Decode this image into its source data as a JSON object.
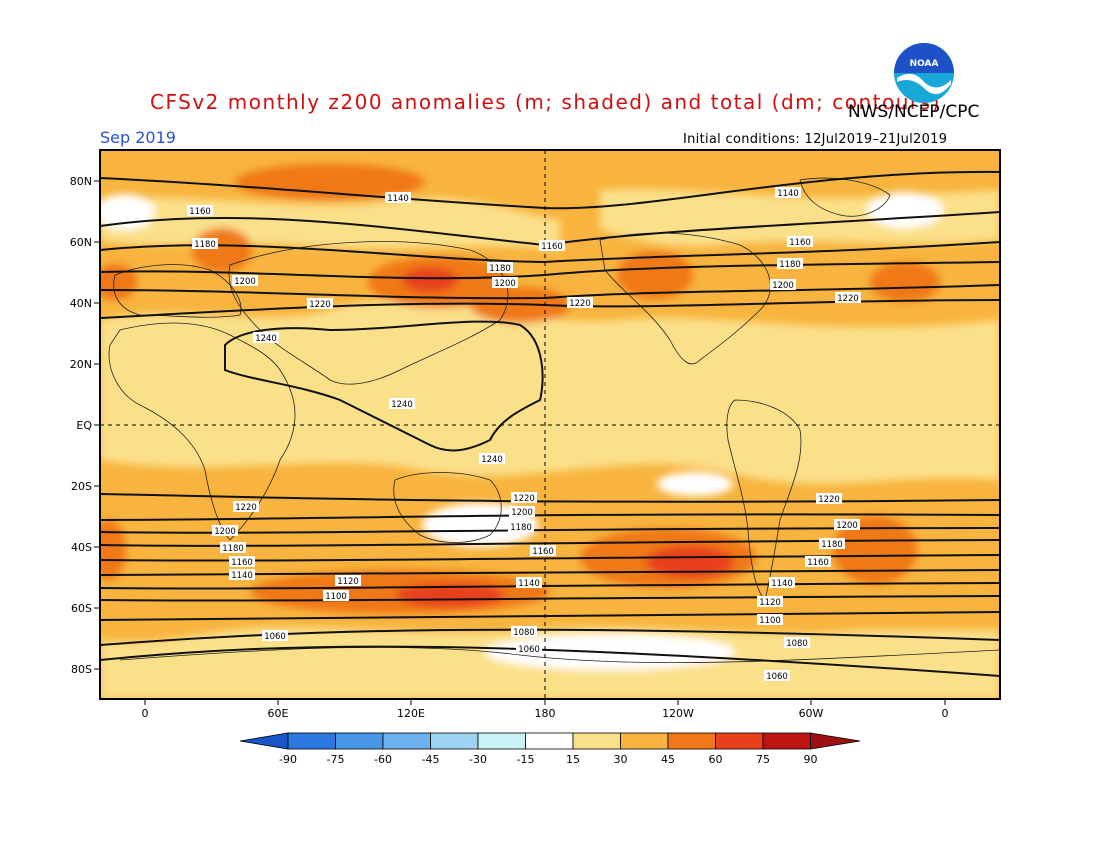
{
  "header": {
    "title": "CFSv2 monthly z200 anomalies (m; shaded) and total (dm; contours)",
    "agency": "NWS/NCEP/CPC",
    "month": "Sep 2019",
    "initial_conditions": "Initial conditions: 12Jul2019–21Jul2019"
  },
  "logo": {
    "text": "NOAA",
    "colors": {
      "blue": "#1e50c8",
      "white": "#ffffff",
      "teal": "#18a8d8"
    }
  },
  "axes": {
    "lat_labels": [
      "80N",
      "60N",
      "40N",
      "20N",
      "EQ",
      "20S",
      "40S",
      "60S",
      "80S"
    ],
    "lon_labels": [
      "0",
      "60E",
      "120E",
      "180",
      "120W",
      "60W",
      "0"
    ]
  },
  "contour_labels": [
    "1060",
    "1080",
    "1100",
    "1120",
    "1140",
    "1160",
    "1180",
    "1200",
    "1220",
    "1240"
  ],
  "colorbar": {
    "levels": [
      "-90",
      "-75",
      "-60",
      "-45",
      "-30",
      "-15",
      "15",
      "30",
      "45",
      "60",
      "75",
      "90"
    ],
    "colors": [
      "#1656c8",
      "#2a78e0",
      "#4896e6",
      "#6cb2ee",
      "#9ed2f4",
      "#c8f2f6",
      "#ffffff",
      "#fbe08a",
      "#f8b43e",
      "#f07818",
      "#e8401c",
      "#c01414",
      "#9c1010"
    ]
  }
}
